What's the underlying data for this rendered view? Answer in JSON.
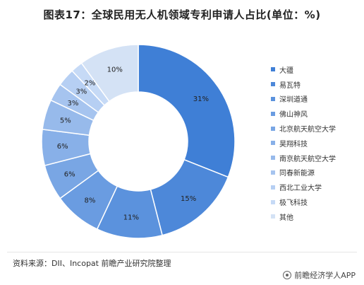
{
  "chart_data": {
    "type": "pie",
    "title": "图表17：全球民用无人机领域专利申请人占比(单位：%)",
    "categories": [
      "大疆",
      "易瓦特",
      "深圳道通",
      "佛山神风",
      "北京航天航空大学",
      "昊翔科技",
      "南京航天航空大学",
      "同春新能源",
      "西北工业大学",
      "极飞科技",
      "其他"
    ],
    "values": [
      31,
      15,
      11,
      8,
      6,
      6,
      5,
      3,
      3,
      2,
      10
    ],
    "value_labels": [
      "31%",
      "15%",
      "11%",
      "8%",
      "6%",
      "6%",
      "5%",
      "3%",
      "3%",
      "2%",
      "10%"
    ],
    "colors": [
      "#3f7fd6",
      "#4d88d9",
      "#5b92dd",
      "#6a9ce1",
      "#79a6e4",
      "#88b0e8",
      "#97baeb",
      "#a6c4ef",
      "#b6cff3",
      "#c6daf6",
      "#d4e2f5"
    ],
    "legend_position": "right",
    "donut": true
  },
  "footer": {
    "source": "资料来源：DII、Incopat 前瞻产业研究院整理",
    "brand": "前瞻经济学人APP"
  }
}
